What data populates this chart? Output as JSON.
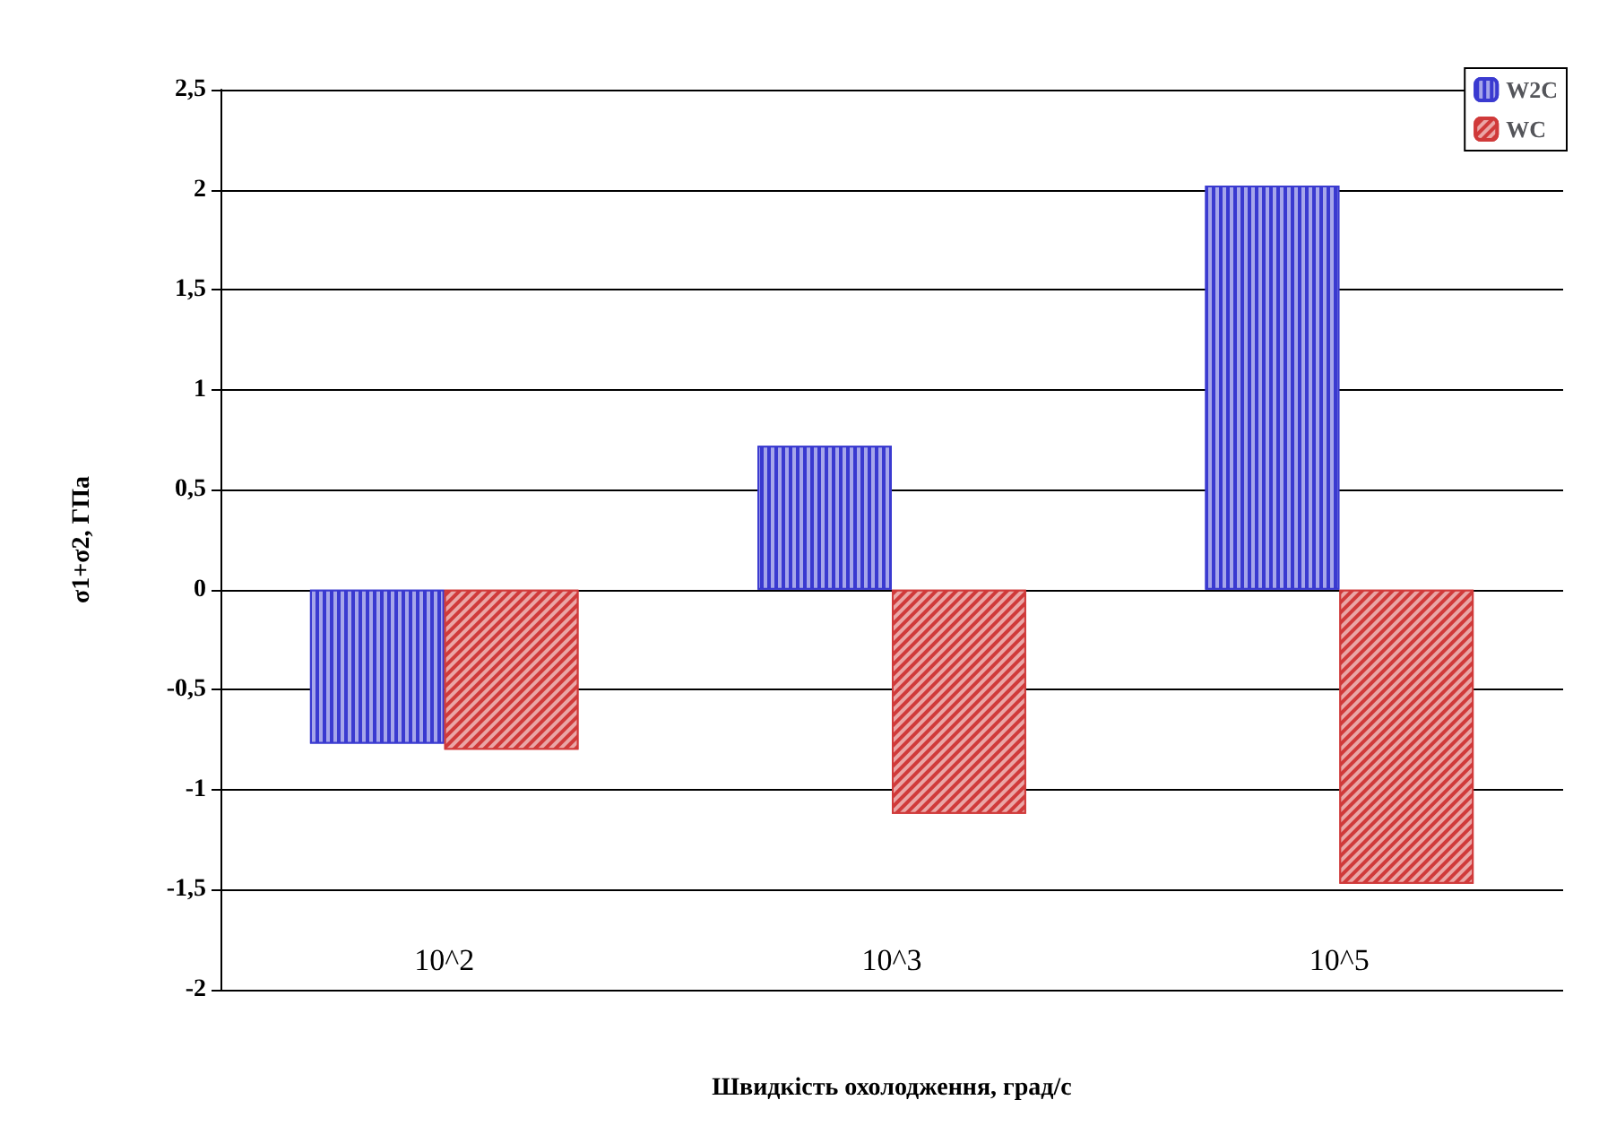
{
  "chart_data": {
    "type": "bar",
    "xlabel": "Швидкість охолодження, град/с",
    "ylabel": "σ1+σ2, ГПа",
    "categories": [
      "10^2",
      "10^3",
      "10^5"
    ],
    "series": [
      {
        "name": "W2C",
        "color": "#3a3ad0",
        "values": [
          -0.77,
          0.72,
          2.02
        ]
      },
      {
        "name": "WC",
        "color": "#d03a3a",
        "values": [
          -0.8,
          -1.12,
          -1.47
        ]
      }
    ],
    "ylim": [
      -2,
      2.5
    ],
    "yticks": [
      {
        "value": -2,
        "label": "-2"
      },
      {
        "value": -1.5,
        "label": "-1,5"
      },
      {
        "value": -1,
        "label": "-1"
      },
      {
        "value": -0.5,
        "label": "-0,5"
      },
      {
        "value": 0,
        "label": "0"
      },
      {
        "value": 0.5,
        "label": "0,5"
      },
      {
        "value": 1,
        "label": "1"
      },
      {
        "value": 1.5,
        "label": "1,5"
      },
      {
        "value": 2,
        "label": "2"
      },
      {
        "value": 2.5,
        "label": "2,5"
      }
    ],
    "grid": "y",
    "legend": "top right"
  }
}
